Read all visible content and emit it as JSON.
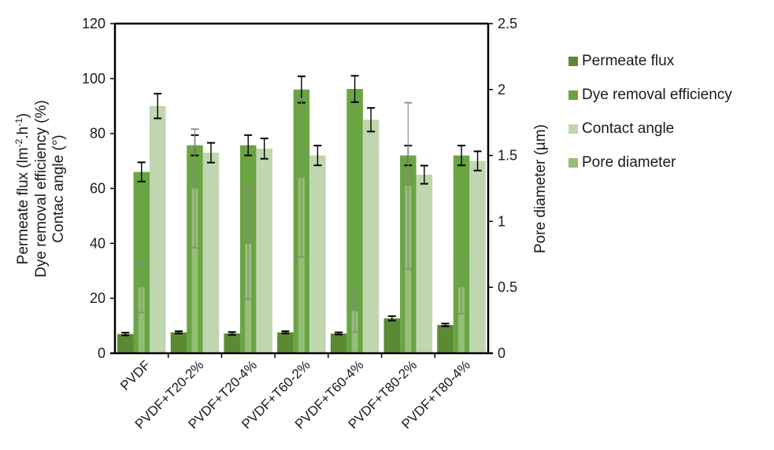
{
  "chart_data": {
    "type": "bar",
    "title": "",
    "categories": [
      "PVDF",
      "PVDF+T20-2%",
      "PVDF+T20-4%",
      "PVDF+T60-2%",
      "PVDF+T60-4%",
      "PVDF+T80-2%",
      "PVDF+T80-4%"
    ],
    "xlabel": "",
    "ylabel_lines": [
      "Permeate flux (lm-2.h-1)",
      "Dye removal efficiency (%)",
      "Contac angle (°)"
    ],
    "ylabel_parts": {
      "line1_pre": "Permeate flux (lm",
      "line1_sup1": "-2",
      "line1_mid": ".h",
      "line1_sup2": "-1",
      "line1_post": ")",
      "line2": "Dye removal efficiency (%)",
      "line3": "Contac angle (°)"
    },
    "y2label": "Pore diameter (µm)",
    "ylim": [
      0,
      120
    ],
    "y2lim": [
      0,
      2.5
    ],
    "yticks": [
      0,
      20,
      40,
      60,
      80,
      100,
      120
    ],
    "y2ticks": [
      0,
      0.5,
      1,
      1.5,
      2,
      2.5
    ],
    "y2tick_labels": [
      "0",
      "0.5",
      "1",
      "1.5",
      "2",
      "2.5"
    ],
    "grid": false,
    "legend_position": "right",
    "series": [
      {
        "name": "Permeate flux",
        "axis": "left",
        "color": "#5a8a34",
        "values": [
          7.0,
          7.6,
          7.2,
          7.6,
          7.2,
          12.7,
          10.3
        ],
        "errors": [
          0.5,
          0.4,
          0.5,
          0.4,
          0.4,
          0.8,
          0.5
        ]
      },
      {
        "name": "Dye removal efficiency",
        "axis": "left",
        "color": "#6aa443",
        "values": [
          66.0,
          75.7,
          75.7,
          96.0,
          96.2,
          72.0,
          72.0
        ],
        "errors": [
          3.5,
          3.7,
          3.7,
          4.8,
          4.8,
          3.6,
          3.6
        ]
      },
      {
        "name": "Contact angle",
        "axis": "left",
        "color": "#c0d6b0",
        "values": [
          90.0,
          73.0,
          74.5,
          72.0,
          85.0,
          65.0,
          70.0
        ],
        "errors": [
          4.5,
          3.6,
          3.7,
          3.6,
          4.3,
          3.3,
          3.5
        ]
      },
      {
        "name": "Pore diameter",
        "axis": "right",
        "color": "#93bf76",
        "values": [
          0.5,
          1.25,
          0.83,
          1.33,
          0.32,
          1.27,
          0.5
        ],
        "errors": [
          0.19,
          0.45,
          0.42,
          0.6,
          0.16,
          0.63,
          0.2
        ]
      }
    ]
  }
}
